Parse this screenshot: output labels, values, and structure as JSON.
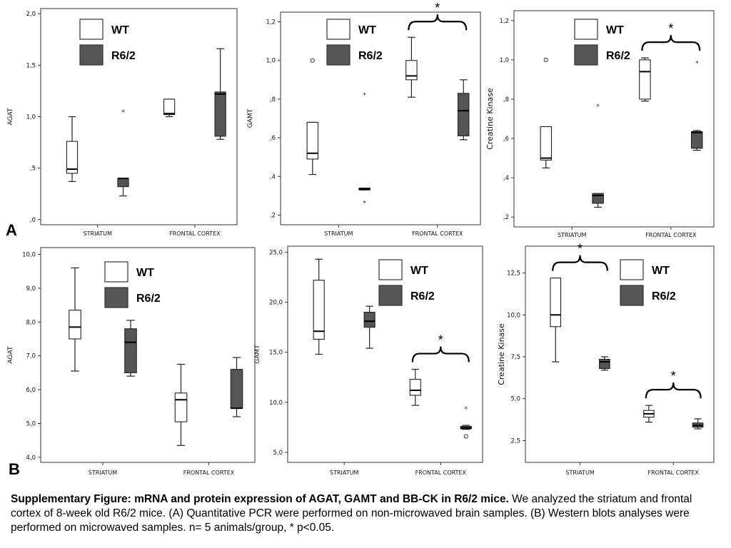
{
  "figure": {
    "panel_labels": [
      "A",
      "B"
    ],
    "legend": {
      "wt_label": "WT",
      "r62_label": "R6/2"
    },
    "colors": {
      "wt_fill": "#ffffff",
      "r62_fill": "#555555",
      "frame": "#555555",
      "bracket": "#000000"
    }
  },
  "caption": {
    "title": "Supplementary Figure: mRNA and protein expression of AGAT, GAMT and BB-CK in R6/2 mice.",
    "body": " We analyzed the striatum and frontal cortex of 8-week old R6/2 mice. (A) Quantitative PCR were performed on non-microwaved brain samples. (B) Western blots analyses were performed on microwaved samples. n= 5 animals/group, * p<0.05."
  },
  "chart_data": [
    {
      "type": "box",
      "panel": "A",
      "ylabel": "AGAT",
      "categories": [
        "STRIATUM",
        "FRONTAL CORTEX"
      ],
      "ylim": [
        -0.05,
        2.05
      ],
      "yticks": [
        0,
        0.5,
        1.0,
        1.5,
        2.0
      ],
      "ytick_labels": [
        ",0",
        ",5",
        "1,0",
        "1,5",
        "2,0"
      ],
      "series": [
        {
          "name": "WT",
          "boxes": [
            {
              "min": 0.37,
              "q1": 0.45,
              "median": 0.49,
              "q3": 0.76,
              "max": 1.0,
              "outliers": []
            },
            {
              "min": 1.0,
              "q1": 1.02,
              "median": 1.03,
              "q3": 1.17,
              "max": 1.17,
              "outliers": []
            }
          ]
        },
        {
          "name": "R6/2",
          "boxes": [
            {
              "min": 0.23,
              "q1": 0.32,
              "median": 0.4,
              "q3": 0.4,
              "max": 0.4,
              "outliers": [],
              "extremes": [
                1.06
              ]
            },
            {
              "min": 0.78,
              "q1": 0.81,
              "median": 1.22,
              "q3": 1.24,
              "max": 1.66,
              "outliers": []
            }
          ]
        }
      ],
      "significance": []
    },
    {
      "type": "box",
      "panel": "A",
      "ylabel": "GAMT",
      "categories": [
        "STRIATUM",
        "FRONTAL CORTEX"
      ],
      "ylim": [
        0.15,
        1.25
      ],
      "yticks": [
        0.2,
        0.4,
        0.6,
        0.8,
        1.0,
        1.2
      ],
      "ytick_labels": [
        ",2",
        ",4",
        ",6",
        ",8",
        "1,0",
        "1,2"
      ],
      "series": [
        {
          "name": "WT",
          "boxes": [
            {
              "min": 0.41,
              "q1": 0.49,
              "median": 0.52,
              "q3": 0.68,
              "max": 0.68,
              "outliers": [
                1.0
              ]
            },
            {
              "min": 0.81,
              "q1": 0.9,
              "median": 0.92,
              "q3": 1.0,
              "max": 1.12,
              "outliers": []
            }
          ]
        },
        {
          "name": "R6/2",
          "boxes": [
            {
              "min": 0.33,
              "q1": 0.33,
              "median": 0.335,
              "q3": 0.34,
              "max": 0.34,
              "outliers": [],
              "extremes": [
                0.83,
                0.27
              ]
            },
            {
              "min": 0.59,
              "q1": 0.61,
              "median": 0.74,
              "q3": 0.83,
              "max": 0.9,
              "outliers": []
            }
          ]
        }
      ],
      "significance": [
        {
          "category": "FRONTAL CORTEX",
          "label": "*"
        }
      ]
    },
    {
      "type": "box",
      "panel": "A",
      "ylabel": "Creatine Kinase",
      "categories": [
        "STRIATUM",
        "FRONTAL CORTEX"
      ],
      "ylim": [
        0.15,
        1.25
      ],
      "yticks": [
        0.2,
        0.4,
        0.6,
        0.8,
        1.0,
        1.2
      ],
      "ytick_labels": [
        ",2",
        ",4",
        ",6",
        ",8",
        "1,0",
        "1,2"
      ],
      "series": [
        {
          "name": "WT",
          "boxes": [
            {
              "min": 0.45,
              "q1": 0.49,
              "median": 0.5,
              "q3": 0.66,
              "max": 0.66,
              "outliers": [
                1.0
              ]
            },
            {
              "min": 0.79,
              "q1": 0.8,
              "median": 0.94,
              "q3": 1.0,
              "max": 1.01,
              "outliers": []
            }
          ]
        },
        {
          "name": "R6/2",
          "boxes": [
            {
              "min": 0.25,
              "q1": 0.27,
              "median": 0.31,
              "q3": 0.32,
              "max": 0.32,
              "outliers": [],
              "extremes": [
                0.77
              ]
            },
            {
              "min": 0.54,
              "q1": 0.55,
              "median": 0.63,
              "q3": 0.635,
              "max": 0.64,
              "outliers": [],
              "extremes": [
                0.99
              ]
            }
          ]
        }
      ],
      "significance": [
        {
          "category": "FRONTAL CORTEX",
          "label": "*"
        }
      ]
    },
    {
      "type": "box",
      "panel": "B",
      "ylabel": "AGAT",
      "categories": [
        "STRIATUM",
        "FRONTAL CORTEX"
      ],
      "ylim": [
        3.85,
        10.2
      ],
      "yticks": [
        4,
        5,
        6,
        7,
        8,
        9,
        10
      ],
      "ytick_labels": [
        "4,0",
        "5,0",
        "6,0",
        "7,0",
        "8,0",
        "9,0",
        "10,0"
      ],
      "series": [
        {
          "name": "WT",
          "boxes": [
            {
              "min": 6.55,
              "q1": 7.5,
              "median": 7.85,
              "q3": 8.35,
              "max": 9.6,
              "outliers": []
            },
            {
              "min": 4.35,
              "q1": 5.05,
              "median": 5.7,
              "q3": 5.9,
              "max": 6.75,
              "outliers": []
            }
          ]
        },
        {
          "name": "R6/2",
          "boxes": [
            {
              "min": 6.4,
              "q1": 6.5,
              "median": 7.4,
              "q3": 7.8,
              "max": 8.05,
              "outliers": []
            },
            {
              "min": 5.2,
              "q1": 5.45,
              "median": 5.45,
              "q3": 6.6,
              "max": 6.95,
              "outliers": []
            }
          ]
        }
      ],
      "significance": []
    },
    {
      "type": "box",
      "panel": "B",
      "ylabel": "GAMT",
      "categories": [
        "STRIATUM",
        "FRONTAL CORTEX"
      ],
      "ylim": [
        4.0,
        25.6
      ],
      "yticks": [
        5,
        10,
        15,
        20,
        25
      ],
      "ytick_labels": [
        "5,0",
        "10,0",
        "15,0",
        "20,0",
        "25,0"
      ],
      "series": [
        {
          "name": "WT",
          "boxes": [
            {
              "min": 14.8,
              "q1": 16.3,
              "median": 17.1,
              "q3": 22.2,
              "max": 24.3,
              "outliers": []
            },
            {
              "min": 9.7,
              "q1": 10.7,
              "median": 11.2,
              "q3": 12.3,
              "max": 13.3,
              "outliers": []
            }
          ]
        },
        {
          "name": "R6/2",
          "boxes": [
            {
              "min": 15.4,
              "q1": 17.5,
              "median": 18.1,
              "q3": 19.0,
              "max": 19.6,
              "outliers": []
            },
            {
              "min": 7.3,
              "q1": 7.35,
              "median": 7.45,
              "q3": 7.6,
              "max": 7.7,
              "outliers": [
                6.6
              ],
              "extremes": [
                9.5
              ]
            }
          ]
        }
      ],
      "significance": [
        {
          "category": "FRONTAL CORTEX",
          "label": "*"
        }
      ]
    },
    {
      "type": "box",
      "panel": "B",
      "ylabel": "Creatine Kinase",
      "categories": [
        "STRIATUM",
        "FRONTAL CORTEX"
      ],
      "ylim": [
        1.2,
        14.1
      ],
      "yticks": [
        2.5,
        5.0,
        7.5,
        10.0,
        12.5
      ],
      "ytick_labels": [
        "2,5",
        "5,0",
        "7,5",
        "10,0",
        "12,5"
      ],
      "series": [
        {
          "name": "WT",
          "boxes": [
            {
              "min": 7.2,
              "q1": 9.3,
              "median": 10.0,
              "q3": 12.2,
              "max": 12.2,
              "outliers": []
            },
            {
              "min": 3.6,
              "q1": 3.9,
              "median": 4.1,
              "q3": 4.3,
              "max": 4.6,
              "outliers": []
            }
          ]
        },
        {
          "name": "R6/2",
          "boxes": [
            {
              "min": 6.7,
              "q1": 6.8,
              "median": 7.2,
              "q3": 7.35,
              "max": 7.5,
              "outliers": []
            },
            {
              "min": 3.2,
              "q1": 3.3,
              "median": 3.4,
              "q3": 3.55,
              "max": 3.8,
              "outliers": []
            }
          ]
        }
      ],
      "significance": [
        {
          "category": "STRIATUM",
          "label": "*"
        },
        {
          "category": "FRONTAL CORTEX",
          "label": "*"
        }
      ]
    }
  ]
}
